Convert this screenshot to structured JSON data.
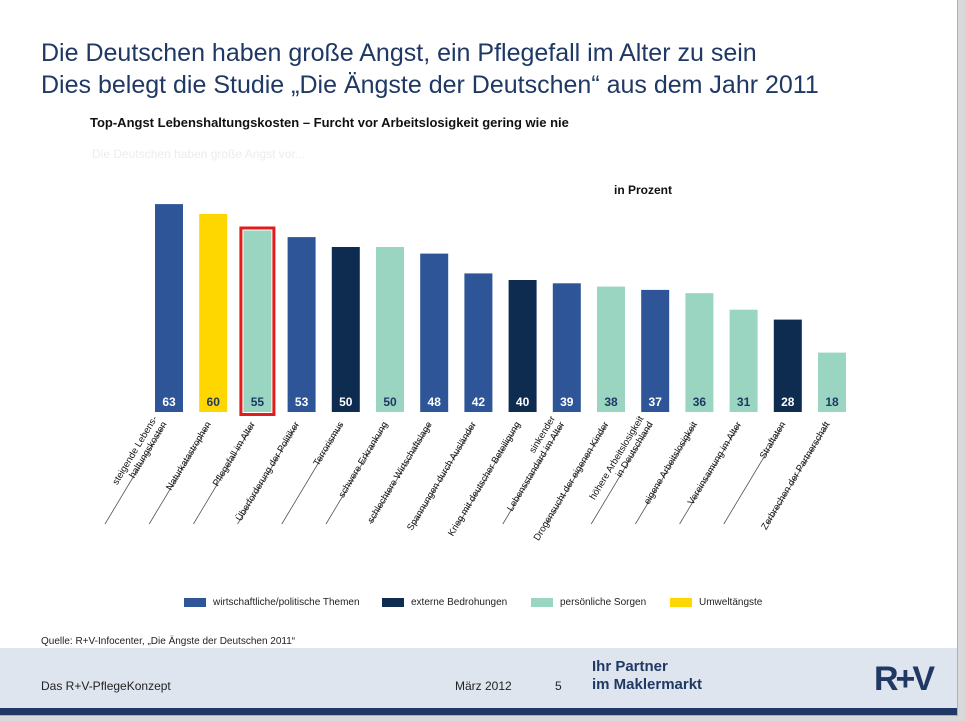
{
  "slide": {
    "title_line1": "Die Deutschen haben große Angst, ein Pflegefall im Alter zu sein",
    "title_line2": "Dies belegt die Studie „Die Ängste der Deutschen“ aus dem Jahr 2011",
    "subtitle": "Top-Angst Lebenshaltungskosten – Furcht vor Arbeitslosigkeit gering wie nie",
    "chart_caption": "Die Deutschen haben große Angst vor...",
    "unit_label": "in Prozent",
    "source": "Quelle: R+V-Infocenter, „Die Ängste der Deutschen 2011“"
  },
  "footer": {
    "left": "Das R+V-PflegeKonzept",
    "date": "März 2012",
    "page": "5",
    "slogan_line1": "Ihr Partner",
    "slogan_line2": "im Maklermarkt",
    "logo_text": "R+V"
  },
  "colors": {
    "wirtschaftlich": "#2e5597",
    "extern": "#0e2c4f",
    "persoenlich": "#99d5c0",
    "umwelt": "#ffd700",
    "highlight": "#e01c1c"
  },
  "chart_data": {
    "type": "bar",
    "unit": "in Prozent",
    "categories": [
      "steigende Lebens-\nhaltungskosten",
      "Naturkatastrophen",
      "Pflegefall im Alter",
      "Überforderung der Politiker",
      "Terrorismus",
      "schwere Erkrankung",
      "schlechtere Wirtschaftslage",
      "Spannungen durch Ausländer",
      "Krieg mit deutscher Beteiligung",
      "sinkender\nLebensstandard im Alter",
      "Drogensucht der eigenen Kinder",
      "höhere Arbeitslosigkeit\nin Deutschland",
      "eigene Arbeitslosigkeit",
      "Vereinsamung im Alter",
      "Straftaten",
      "Zerbrechen der Partnerschaft"
    ],
    "values": [
      63,
      60,
      55,
      53,
      50,
      50,
      48,
      42,
      40,
      39,
      38,
      37,
      36,
      31,
      28,
      18
    ],
    "groups": [
      "wirtschaftlich",
      "umwelt",
      "persoenlich",
      "wirtschaftlich",
      "extern",
      "persoenlich",
      "wirtschaftlich",
      "wirtschaftlich",
      "extern",
      "wirtschaftlich",
      "persoenlich",
      "wirtschaftlich",
      "persoenlich",
      "persoenlich",
      "extern",
      "persoenlich"
    ],
    "highlighted": [
      "Pflegefall im Alter"
    ],
    "legend": [
      {
        "key": "wirtschaftlich",
        "label": "wirtschaftliche/politische Themen"
      },
      {
        "key": "extern",
        "label": "externe Bedrohungen"
      },
      {
        "key": "persoenlich",
        "label": "persönliche Sorgen"
      },
      {
        "key": "umwelt",
        "label": "Umweltängste"
      }
    ],
    "legend_position": "bottom",
    "grid": false
  }
}
